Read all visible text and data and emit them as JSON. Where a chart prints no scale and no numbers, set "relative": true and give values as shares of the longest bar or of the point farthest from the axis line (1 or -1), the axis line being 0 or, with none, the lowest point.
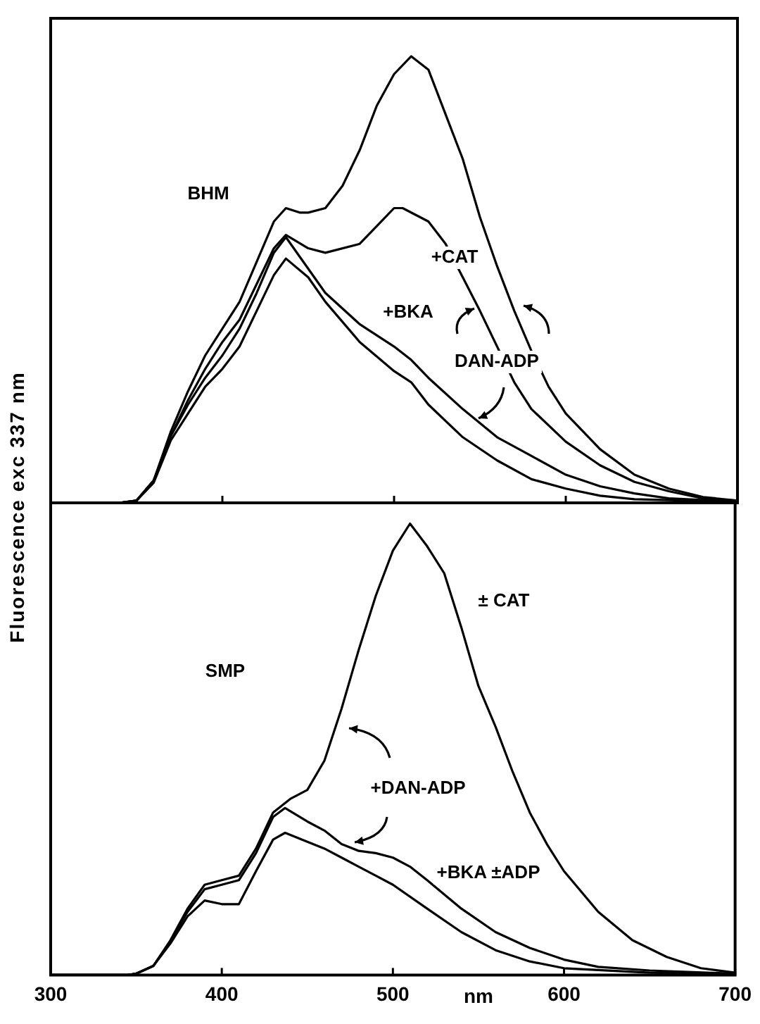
{
  "chart_data": [
    {
      "type": "line",
      "relative": true,
      "ylabel": "Fluorescence exc 337 nm",
      "xlim": [
        300,
        700
      ],
      "xticks": [
        300,
        400,
        500,
        600,
        700
      ],
      "tick_labels": false,
      "series": [
        {
          "color": "#000000",
          "x": [
            300,
            340,
            350,
            360,
            370,
            380,
            390,
            400,
            410,
            420,
            430,
            437,
            445,
            450,
            460,
            470,
            480,
            490,
            500,
            510,
            520,
            530,
            540,
            550,
            560,
            570,
            580,
            590,
            600,
            620,
            640,
            660,
            680,
            700
          ],
          "values": [
            0,
            0,
            0.005,
            0.05,
            0.16,
            0.25,
            0.33,
            0.39,
            0.45,
            0.54,
            0.63,
            0.66,
            0.65,
            0.65,
            0.66,
            0.71,
            0.79,
            0.89,
            0.96,
            1,
            0.97,
            0.87,
            0.77,
            0.64,
            0.53,
            0.43,
            0.34,
            0.26,
            0.2,
            0.12,
            0.063,
            0.032,
            0.013,
            0.005
          ]
        },
        {
          "color": "#000000",
          "x": [
            300,
            340,
            350,
            360,
            370,
            380,
            390,
            400,
            410,
            420,
            430,
            437,
            450,
            460,
            480,
            490,
            500,
            505,
            520,
            530,
            540,
            550,
            560,
            570,
            580,
            600,
            620,
            640,
            660,
            680,
            700
          ],
          "values": [
            0,
            0,
            0.005,
            0.05,
            0.15,
            0.23,
            0.3,
            0.36,
            0.41,
            0.49,
            0.57,
            0.6,
            0.57,
            0.56,
            0.58,
            0.62,
            0.66,
            0.66,
            0.63,
            0.58,
            0.505,
            0.43,
            0.35,
            0.27,
            0.21,
            0.137,
            0.084,
            0.047,
            0.026,
            0.01,
            0.005
          ]
        },
        {
          "color": "#000000",
          "x": [
            300,
            340,
            350,
            360,
            370,
            380,
            390,
            400,
            410,
            420,
            430,
            437,
            460,
            480,
            500,
            510,
            520,
            540,
            560,
            580,
            600,
            620,
            640,
            660,
            700
          ],
          "values": [
            0,
            0,
            0.005,
            0.05,
            0.15,
            0.22,
            0.28,
            0.33,
            0.39,
            0.47,
            0.56,
            0.595,
            0.47,
            0.4,
            0.35,
            0.32,
            0.28,
            0.21,
            0.147,
            0.105,
            0.063,
            0.037,
            0.021,
            0.01,
            0.003
          ]
        },
        {
          "color": "#000000",
          "x": [
            300,
            340,
            350,
            360,
            370,
            380,
            390,
            400,
            410,
            420,
            430,
            437,
            450,
            460,
            480,
            500,
            510,
            520,
            540,
            560,
            580,
            600,
            620,
            640,
            700
          ],
          "values": [
            0,
            0,
            0.005,
            0.045,
            0.14,
            0.2,
            0.26,
            0.3,
            0.35,
            0.43,
            0.51,
            0.547,
            0.505,
            0.45,
            0.36,
            0.295,
            0.27,
            0.22,
            0.147,
            0.095,
            0.053,
            0.032,
            0.016,
            0.008,
            0.002
          ]
        }
      ],
      "annotations": [
        "BHM",
        "+CAT",
        "+BKA",
        "DAN-ADP"
      ]
    },
    {
      "type": "line",
      "relative": true,
      "xlabel": "nm",
      "xlim": [
        300,
        700
      ],
      "xticks": [
        300,
        400,
        500,
        600,
        700
      ],
      "tick_labels": "x",
      "series": [
        {
          "color": "#000000",
          "x": [
            300,
            345,
            350,
            360,
            370,
            380,
            390,
            400,
            410,
            420,
            430,
            440,
            450,
            460,
            470,
            480,
            490,
            500,
            510,
            520,
            530,
            540,
            550,
            560,
            570,
            580,
            590,
            600,
            620,
            640,
            660,
            680,
            700
          ],
          "values": [
            0,
            0,
            0.003,
            0.02,
            0.077,
            0.147,
            0.2,
            0.21,
            0.22,
            0.28,
            0.36,
            0.39,
            0.41,
            0.475,
            0.59,
            0.72,
            0.84,
            0.94,
            1,
            0.95,
            0.89,
            0.77,
            0.64,
            0.55,
            0.45,
            0.36,
            0.29,
            0.23,
            0.14,
            0.077,
            0.04,
            0.015,
            0.005
          ]
        },
        {
          "color": "#000000",
          "x": [
            300,
            345,
            350,
            360,
            370,
            380,
            390,
            400,
            410,
            420,
            430,
            437,
            450,
            460,
            470,
            480,
            490,
            500,
            510,
            520,
            540,
            560,
            580,
            600,
            620,
            650,
            700
          ],
          "values": [
            0,
            0,
            0.003,
            0.02,
            0.075,
            0.14,
            0.19,
            0.2,
            0.21,
            0.27,
            0.35,
            0.37,
            0.34,
            0.32,
            0.29,
            0.275,
            0.27,
            0.26,
            0.24,
            0.21,
            0.147,
            0.095,
            0.06,
            0.034,
            0.018,
            0.01,
            0.003
          ]
        },
        {
          "color": "#000000",
          "x": [
            300,
            345,
            350,
            360,
            370,
            380,
            390,
            400,
            410,
            420,
            430,
            437,
            450,
            460,
            470,
            480,
            490,
            500,
            520,
            540,
            560,
            580,
            600,
            650,
            700
          ],
          "values": [
            0,
            0,
            0.003,
            0.02,
            0.07,
            0.13,
            0.165,
            0.157,
            0.157,
            0.23,
            0.3,
            0.315,
            0.295,
            0.28,
            0.26,
            0.24,
            0.22,
            0.2,
            0.147,
            0.095,
            0.055,
            0.03,
            0.015,
            0.005,
            0.002
          ]
        }
      ],
      "annotations": [
        "SMP",
        "± CAT",
        "+DAN-ADP",
        "+BKA ±ADP"
      ]
    }
  ]
}
